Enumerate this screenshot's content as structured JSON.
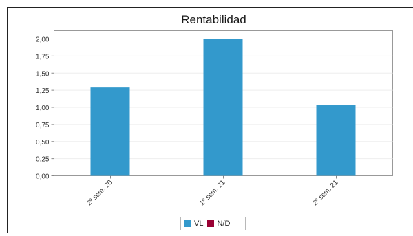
{
  "chart_data": {
    "type": "bar",
    "title": "Rentabilidad",
    "xlabel": "",
    "ylabel": "",
    "categories": [
      "2º sem. 20",
      "1º sem. 21",
      "2º sem. 21"
    ],
    "series": [
      {
        "name": "VL",
        "values": [
          1.29,
          2.0,
          1.03
        ],
        "color": "#3399cc"
      },
      {
        "name": "N/D",
        "values": [
          null,
          null,
          null
        ],
        "color": "#990033"
      }
    ],
    "ylim": [
      0,
      2.0
    ],
    "yticks": [
      "0,00",
      "0,25",
      "0,50",
      "0,75",
      "1,00",
      "1,25",
      "1,50",
      "1,75",
      "2,00"
    ],
    "grid": true,
    "legend_position": "bottom"
  },
  "colors": {
    "frame": "#222222",
    "plot_border": "#999999",
    "grid": "#eeeeee"
  }
}
